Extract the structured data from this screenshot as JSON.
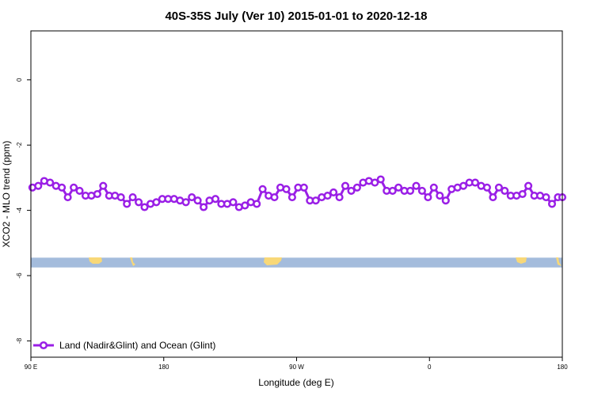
{
  "chart_data": {
    "type": "line",
    "title": "40S-35S July (Ver 10)   2015-01-01 to 2020-12-18",
    "xlabel": "Longitude (deg E)",
    "ylabel": "XCO2 - MLO trend (ppm)",
    "xlim": [
      90,
      450
    ],
    "ylim": [
      -8.5,
      1.5
    ],
    "x_ticks": [
      {
        "value": 90,
        "label": "90 E"
      },
      {
        "value": 180,
        "label": "180"
      },
      {
        "value": 270,
        "label": "90 W"
      },
      {
        "value": 360,
        "label": "0"
      },
      {
        "value": 450,
        "label": "180"
      }
    ],
    "y_ticks": [
      {
        "value": 0,
        "label": "0"
      },
      {
        "value": -2,
        "label": "-2"
      },
      {
        "value": -4,
        "label": "-4"
      },
      {
        "value": -6,
        "label": "-6"
      },
      {
        "value": -8,
        "label": "-8"
      }
    ],
    "legend_position": "bottom-left",
    "line_color": "#9a1fe6",
    "ocean_color": "#a4bcdc",
    "land_color": "#f8d878",
    "landmask_band": [
      -5.45,
      -5.75
    ],
    "series": [
      {
        "name": "Land (Nadir&Glint) and Ocean (Glint)",
        "x": [
          91,
          95,
          99,
          103,
          107,
          111,
          115,
          119,
          123,
          127,
          131,
          135,
          139,
          143,
          147,
          151,
          155,
          159,
          163,
          167,
          171,
          175,
          179,
          183,
          187,
          191,
          195,
          199,
          203,
          207,
          211,
          215,
          219,
          223,
          227,
          231,
          235,
          239,
          243,
          247,
          251,
          255,
          259,
          263,
          267,
          271,
          275,
          279,
          283,
          287,
          291,
          295,
          299,
          303,
          307,
          311,
          315,
          319,
          323,
          327,
          331,
          335,
          339,
          343,
          347,
          351,
          355,
          359,
          363,
          367,
          371,
          375,
          379,
          383,
          387,
          391,
          395,
          399,
          403,
          407,
          411,
          415,
          419,
          423,
          427,
          431,
          435,
          439,
          443,
          447,
          450
        ],
        "y": [
          -3.3,
          -3.25,
          -3.1,
          -3.15,
          -3.25,
          -3.3,
          -3.6,
          -3.3,
          -3.4,
          -3.55,
          -3.55,
          -3.5,
          -3.25,
          -3.55,
          -3.55,
          -3.6,
          -3.8,
          -3.6,
          -3.75,
          -3.9,
          -3.8,
          -3.75,
          -3.65,
          -3.65,
          -3.65,
          -3.7,
          -3.75,
          -3.6,
          -3.7,
          -3.9,
          -3.7,
          -3.65,
          -3.8,
          -3.8,
          -3.75,
          -3.9,
          -3.85,
          -3.75,
          -3.8,
          -3.35,
          -3.55,
          -3.6,
          -3.3,
          -3.35,
          -3.6,
          -3.3,
          -3.3,
          -3.7,
          -3.7,
          -3.6,
          -3.55,
          -3.45,
          -3.6,
          -3.25,
          -3.4,
          -3.3,
          -3.15,
          -3.1,
          -3.15,
          -3.05,
          -3.4,
          -3.4,
          -3.3,
          -3.4,
          -3.4,
          -3.25,
          -3.4,
          -3.6,
          -3.3,
          -3.55,
          -3.7,
          -3.35,
          -3.3,
          -3.25,
          -3.15,
          -3.15,
          -3.25,
          -3.3,
          -3.6,
          -3.3,
          -3.4,
          -3.55,
          -3.55,
          -3.5,
          -3.25,
          -3.55,
          -3.55,
          -3.6,
          -3.8,
          -3.6,
          -3.6
        ]
      }
    ]
  }
}
